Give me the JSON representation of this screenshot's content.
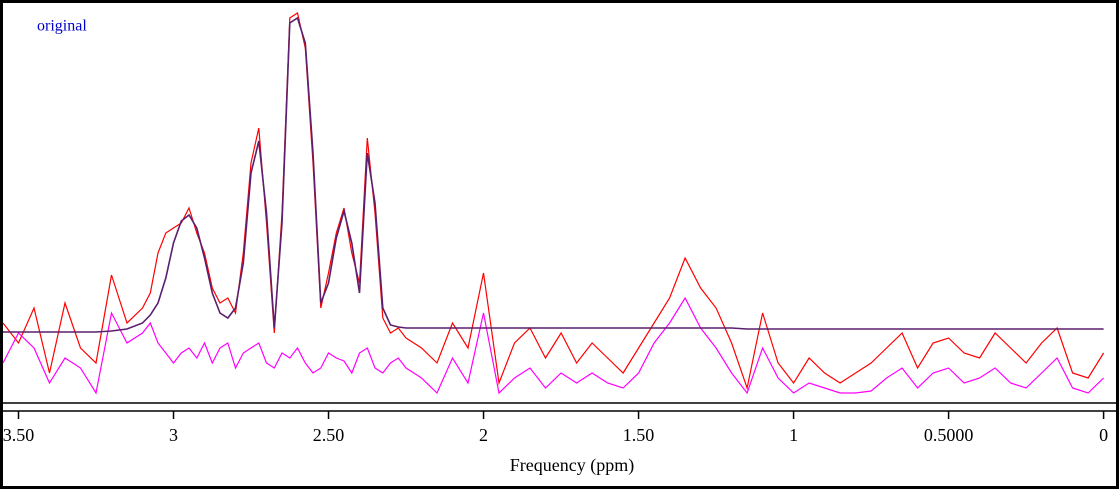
{
  "chart_data": {
    "type": "line",
    "xlabel": "Frequency (ppm)",
    "xlim": [
      3.55,
      -0.04
    ],
    "ylim": [
      0,
      400
    ],
    "xticks": [
      {
        "value": 3.5,
        "label": "3.50"
      },
      3,
      {
        "value": 2.5,
        "label": "2.50"
      },
      2,
      {
        "value": 1.5,
        "label": "1.50"
      },
      1,
      {
        "value": 0.5,
        "label": "0.5000"
      },
      0
    ],
    "x": [
      3.55,
      3.5,
      3.45,
      3.4,
      3.35,
      3.3,
      3.25,
      3.2,
      3.15,
      3.1,
      3.075,
      3.05,
      3.025,
      3.0,
      2.975,
      2.95,
      2.925,
      2.9,
      2.875,
      2.85,
      2.825,
      2.8,
      2.775,
      2.75,
      2.725,
      2.7,
      2.675,
      2.65,
      2.625,
      2.6,
      2.575,
      2.55,
      2.525,
      2.5,
      2.475,
      2.45,
      2.425,
      2.4,
      2.375,
      2.35,
      2.325,
      2.3,
      2.275,
      2.25,
      2.225,
      2.2,
      2.15,
      2.1,
      2.05,
      2.0,
      1.95,
      1.9,
      1.85,
      1.8,
      1.75,
      1.7,
      1.65,
      1.6,
      1.55,
      1.5,
      1.45,
      1.4,
      1.35,
      1.3,
      1.25,
      1.2,
      1.15,
      1.1,
      1.05,
      1.0,
      0.95,
      0.9,
      0.85,
      0.8,
      0.75,
      0.7,
      0.65,
      0.6,
      0.55,
      0.5,
      0.45,
      0.4,
      0.35,
      0.3,
      0.25,
      0.2,
      0.15,
      0.1,
      0.05,
      0.0
    ],
    "series": [
      {
        "name": "original",
        "color": "#ff0000",
        "label_color": "#0000cc",
        "values": [
          80,
          60,
          95,
          30,
          100,
          55,
          40,
          128,
          80,
          95,
          110,
          150,
          170,
          175,
          180,
          195,
          170,
          150,
          115,
          100,
          105,
          90,
          150,
          240,
          275,
          180,
          70,
          190,
          385,
          390,
          355,
          240,
          95,
          130,
          170,
          195,
          150,
          120,
          265,
          190,
          85,
          70,
          75,
          65,
          60,
          55,
          40,
          80,
          55,
          130,
          20,
          60,
          75,
          45,
          70,
          40,
          60,
          45,
          30,
          55,
          80,
          105,
          145,
          115,
          95,
          60,
          15,
          90,
          40,
          20,
          45,
          30,
          20,
          30,
          40,
          55,
          70,
          35,
          60,
          65,
          50,
          45,
          70,
          55,
          40,
          60,
          75,
          30,
          25,
          50
        ]
      },
      {
        "color": "#5a1f6e",
        "values": [
          71,
          71,
          71,
          71,
          71,
          71,
          71,
          72,
          74,
          80,
          88,
          100,
          125,
          160,
          182,
          188,
          175,
          145,
          110,
          90,
          85,
          95,
          140,
          230,
          262,
          190,
          75,
          180,
          380,
          385,
          360,
          250,
          100,
          120,
          165,
          192,
          160,
          110,
          250,
          200,
          95,
          78,
          76,
          75,
          75,
          75,
          75,
          75,
          75,
          75,
          75,
          75,
          75,
          75,
          75,
          75,
          75,
          75,
          75,
          75,
          75,
          75,
          75,
          75,
          75,
          75,
          74,
          74,
          74,
          74,
          74,
          74,
          74,
          74,
          74,
          74,
          74,
          74,
          74,
          74,
          74,
          74,
          74,
          74,
          74,
          74,
          74,
          74,
          74,
          74
        ]
      },
      {
        "color": "#ff00ff",
        "values": [
          40,
          70,
          55,
          20,
          45,
          35,
          10,
          90,
          60,
          70,
          80,
          60,
          50,
          40,
          50,
          55,
          45,
          60,
          40,
          55,
          60,
          35,
          50,
          55,
          60,
          40,
          35,
          50,
          45,
          55,
          40,
          30,
          35,
          50,
          45,
          42,
          30,
          50,
          55,
          35,
          30,
          40,
          45,
          35,
          30,
          25,
          10,
          45,
          20,
          90,
          10,
          25,
          35,
          15,
          30,
          20,
          30,
          20,
          15,
          30,
          60,
          80,
          105,
          75,
          55,
          30,
          10,
          55,
          25,
          10,
          20,
          15,
          10,
          10,
          12,
          25,
          35,
          15,
          30,
          35,
          20,
          25,
          35,
          20,
          15,
          30,
          45,
          15,
          10,
          25
        ]
      }
    ]
  }
}
